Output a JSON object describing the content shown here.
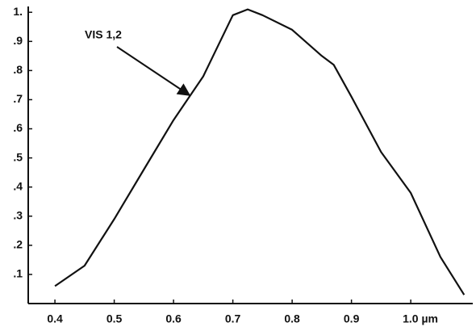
{
  "chart_data": {
    "type": "line",
    "x": [
      0.4,
      0.45,
      0.5,
      0.55,
      0.6,
      0.65,
      0.7,
      0.725,
      0.75,
      0.8,
      0.85,
      0.87,
      0.9,
      0.95,
      1.0,
      1.05,
      1.09
    ],
    "series": [
      {
        "name": "VIS 1,2",
        "color": "#111111",
        "values": [
          0.06,
          0.13,
          0.29,
          0.46,
          0.63,
          0.78,
          0.99,
          1.01,
          0.99,
          0.94,
          0.85,
          0.82,
          0.71,
          0.52,
          0.38,
          0.16,
          0.03
        ]
      }
    ],
    "xlim": [
      0.355,
      1.11
    ],
    "xticks": [
      0.4,
      0.5,
      0.6,
      0.7,
      0.8,
      0.9,
      {
        "value": 1.0,
        "label": "1.0 µm"
      }
    ],
    "ylim": [
      0,
      1.02
    ],
    "yticks": [
      {
        "value": 0.1,
        "label": ".1"
      },
      {
        "value": 0.2,
        "label": ".2"
      },
      {
        "value": 0.3,
        "label": ".3"
      },
      {
        "value": 0.4,
        "label": ".4"
      },
      {
        "value": 0.5,
        "label": ".5"
      },
      {
        "value": 0.6,
        "label": ".6"
      },
      {
        "value": 0.7,
        "label": ".7"
      },
      {
        "value": 0.8,
        "label": ".8"
      },
      {
        "value": 0.9,
        "label": ".9"
      },
      {
        "value": 1,
        "label": "1."
      }
    ],
    "grid": false
  }
}
